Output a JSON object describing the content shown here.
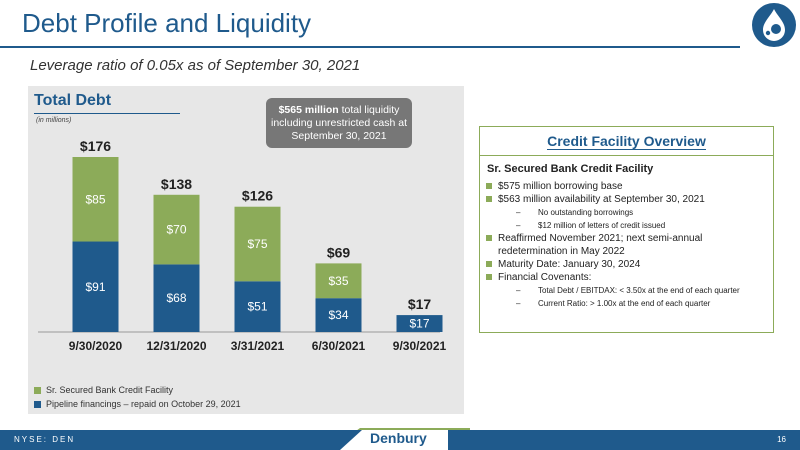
{
  "slide": {
    "title": "Debt Profile and Liquidity",
    "subtitle": "Leverage ratio of 0.05x as of September 30, 2021",
    "page_number": "16",
    "ticker": "NYSE: DEN",
    "brand": "Denbury"
  },
  "chart_panel": {
    "title": "Total Debt",
    "units": "(in millions)",
    "callout_bold": "$565 million",
    "callout_rest": "total liquidity including unrestricted cash at September 30, 2021"
  },
  "colors": {
    "navy": "#1f5a8c",
    "green": "#8cab59",
    "panel": "#e7e7e7",
    "callout": "#777777"
  },
  "chart_data": {
    "type": "bar",
    "stacked": true,
    "categories": [
      "9/30/2020",
      "12/31/2020",
      "3/31/2021",
      "6/30/2021",
      "9/30/2021"
    ],
    "series": [
      {
        "name": "Pipeline financings – repaid on October 29, 2021",
        "values": [
          91,
          68,
          51,
          34,
          17
        ],
        "labels": [
          "$91",
          "$68",
          "$51",
          "$34",
          "$17"
        ]
      },
      {
        "name": "Sr. Secured Bank Credit Facility",
        "values": [
          85,
          70,
          75,
          35,
          0
        ],
        "labels": [
          "$85",
          "$70",
          "$75",
          "$35",
          ""
        ]
      }
    ],
    "totals": [
      176,
      138,
      126,
      69,
      17
    ],
    "total_labels": [
      "$176",
      "$138",
      "$126",
      "$69",
      "$17"
    ],
    "ylim": [
      0,
      176
    ],
    "legend_position": "bottom-left"
  },
  "credit_facility": {
    "title": "Credit Facility Overview",
    "heading": "Sr. Secured Bank Credit Facility",
    "bullets": [
      {
        "text": "$575 million borrowing base",
        "subs": []
      },
      {
        "text": "$563 million availability at September 30, 2021",
        "subs": [
          "No outstanding borrowings",
          "$12 million of letters of credit issued"
        ]
      },
      {
        "text": "Reaffirmed November 2021; next semi-annual redetermination in May 2022",
        "subs": []
      },
      {
        "text": "Maturity Date: January 30, 2024",
        "subs": []
      },
      {
        "text": "Financial Covenants:",
        "subs": [
          "Total Debt / EBITDAX: < 3.50x at the end of each quarter",
          "Current Ratio: > 1.00x at the end of each quarter"
        ]
      }
    ]
  }
}
